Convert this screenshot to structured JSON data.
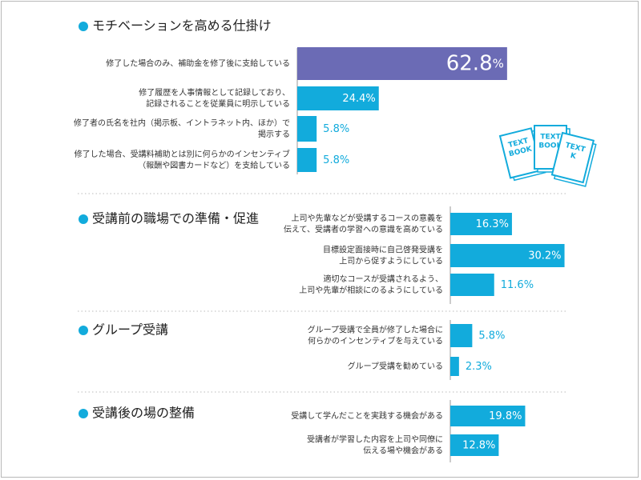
{
  "colors": {
    "bar": "#12ABDC",
    "highlight_bar": "#6B6BB5",
    "bullet": "#12ABDC",
    "outside_label": "#12ABDC",
    "inside_label": "#ffffff",
    "text": "#333333",
    "axis": "#999999",
    "divider": "#bbbbbb"
  },
  "decoration": {
    "icon": "textbook-stack-icon",
    "books": [
      "TEXT\nBOOK",
      "TEXT\nBOOK",
      "TEXT\nK"
    ]
  },
  "chart_data": {
    "type": "bar",
    "orientation": "horizontal",
    "unit": "%",
    "groups": [
      {
        "title": "モチベーションを高める仕掛け",
        "items": [
          {
            "label": [
              "修了した場合のみ、補助金を修了後に支給している"
            ],
            "value": 62.8,
            "highlight": true
          },
          {
            "label": [
              "修了履歴を人事情報として記録しており、",
              "記録されることを従業員に明示している"
            ],
            "value": 24.4
          },
          {
            "label": [
              "修了者の氏名を社内（掲示板、イントラネット内、ほか）で",
              "掲示する"
            ],
            "value": 5.8
          },
          {
            "label": [
              "修了した場合、受講料補助とは別に何らかのインセンティブ",
              "（報酬や図書カードなど）を支給している"
            ],
            "value": 5.8
          }
        ]
      },
      {
        "title": "受講前の職場での準備・促進",
        "items": [
          {
            "label": [
              "上司や先輩などが受講するコースの意義を",
              "伝えて、受講者の学習への意識を高めている"
            ],
            "value": 16.3
          },
          {
            "label": [
              "目標設定面接時に自己啓発受講を",
              "上司から促すようにしている"
            ],
            "value": 30.2
          },
          {
            "label": [
              "適切なコースが受講されるよう、",
              "上司や先輩が相談にのるようにしている"
            ],
            "value": 11.6
          }
        ]
      },
      {
        "title": "グループ受講",
        "items": [
          {
            "label": [
              "グループ受講で全員が修了した場合に",
              "何らかのインセンティブを与えている"
            ],
            "value": 5.8
          },
          {
            "label": [
              "グループ受講を勧めている"
            ],
            "value": 2.3
          }
        ]
      },
      {
        "title": "受講後の場の整備",
        "items": [
          {
            "label": [
              "受講して学んだことを実践する機会がある"
            ],
            "value": 19.8
          },
          {
            "label": [
              "受講者が学習した内容を上司や同僚に",
              "伝える場や機会がある"
            ],
            "value": 12.8
          }
        ]
      }
    ]
  }
}
